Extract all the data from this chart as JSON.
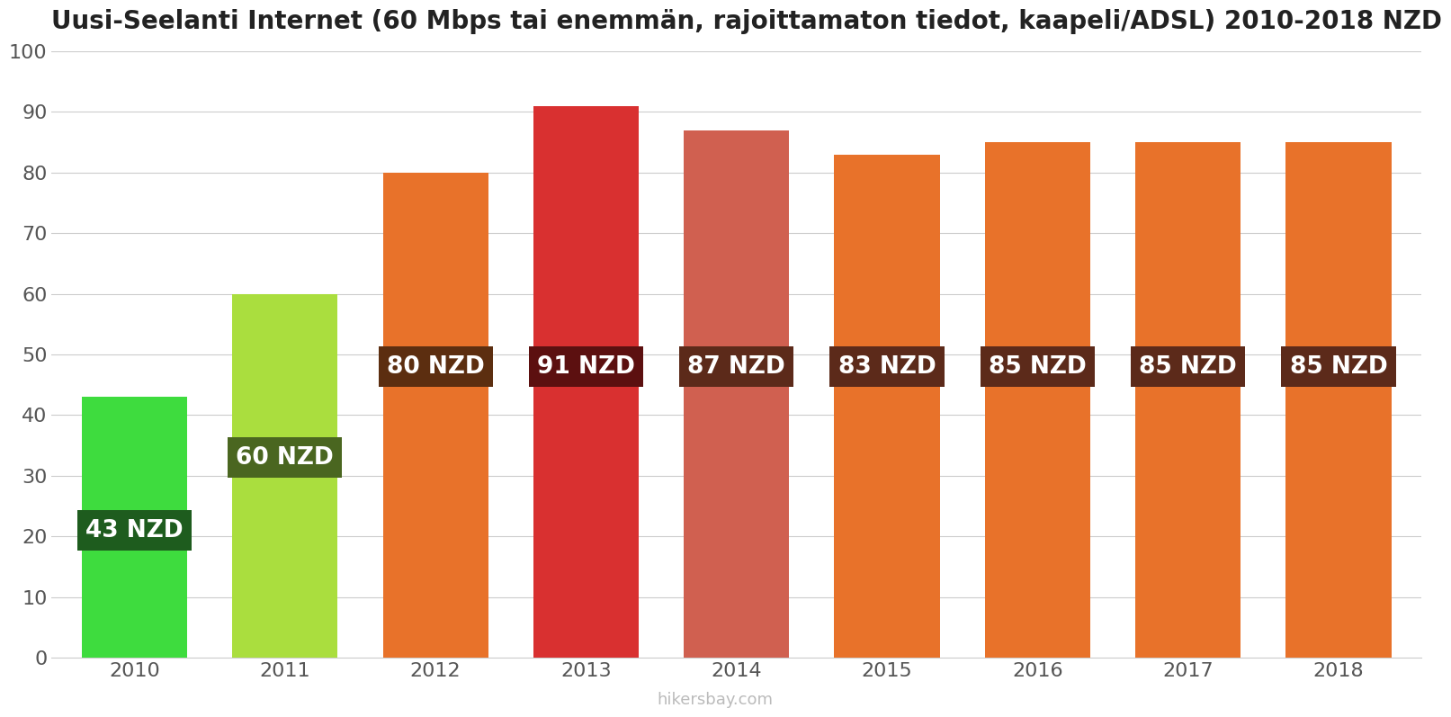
{
  "title": "Uusi-Seelanti Internet (60 Mbps tai enemmän, rajoittamaton tiedot, kaapeli/ADSL) 2010-2018 NZD",
  "years": [
    2010,
    2011,
    2012,
    2013,
    2014,
    2015,
    2016,
    2017,
    2018
  ],
  "values": [
    43,
    60,
    80,
    91,
    87,
    83,
    85,
    85,
    85
  ],
  "bar_colors": [
    "#3edc3e",
    "#aade3e",
    "#e8722a",
    "#d93030",
    "#d06050",
    "#e8722a",
    "#e8722a",
    "#e8722a",
    "#e8722a"
  ],
  "label_bg_colors": [
    "#1e5c1e",
    "#4a6620",
    "#5c2e10",
    "#5c1010",
    "#5c2a1a",
    "#5c2a1a",
    "#5c2a1a",
    "#5c2a1a",
    "#5c2a1a"
  ],
  "labels": [
    "43 NZD",
    "60 NZD",
    "80 NZD",
    "91 NZD",
    "87 NZD",
    "83 NZD",
    "85 NZD",
    "85 NZD",
    "85 NZD"
  ],
  "label_y_positions": [
    21,
    33,
    48,
    48,
    48,
    48,
    48,
    48,
    48
  ],
  "ylim": [
    0,
    100
  ],
  "yticks": [
    0,
    10,
    20,
    30,
    40,
    50,
    60,
    70,
    80,
    90,
    100
  ],
  "background_color": "#ffffff",
  "title_fontsize": 20,
  "label_fontsize": 19,
  "tick_fontsize": 16,
  "watermark": "hikersbay.com",
  "bar_width": 0.7
}
